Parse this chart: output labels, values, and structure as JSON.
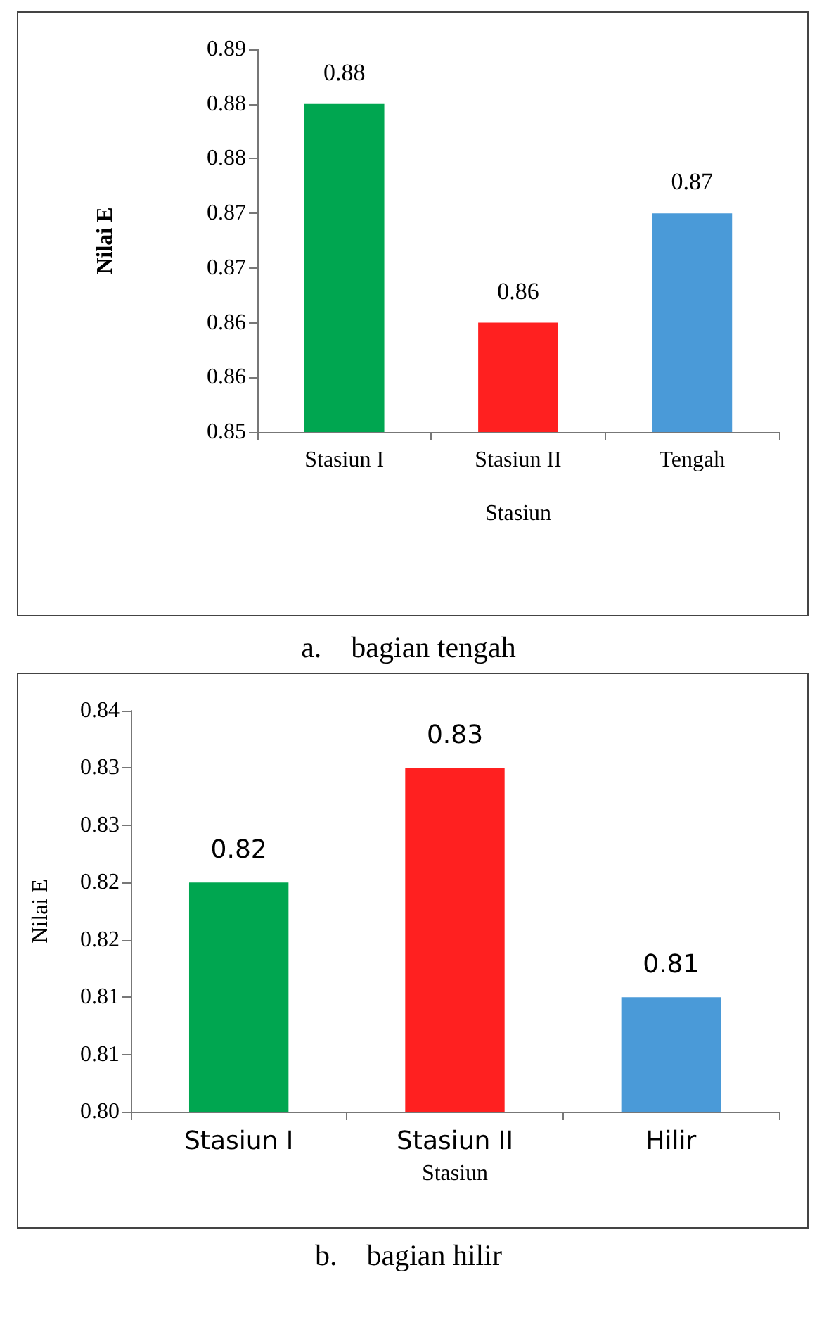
{
  "chart_data": [
    {
      "type": "bar",
      "title": "a.    bagian tengah",
      "xlabel": "Stasiun",
      "ylabel": "Nilai E",
      "categories": [
        "Stasiun I",
        "Stasiun II",
        "Tengah"
      ],
      "values": [
        0.88,
        0.86,
        0.87
      ],
      "colors": [
        "#00a650",
        "#ff2020",
        "#4a9ad8"
      ],
      "ylim": [
        0.85,
        0.885
      ],
      "yticks": [
        0.85,
        {
          "value": 0.855,
          "label": "0.86"
        },
        0.86,
        {
          "value": 0.865,
          "label": "0.87"
        },
        0.87,
        {
          "value": 0.875,
          "label": "0.88"
        },
        0.88,
        {
          "value": 0.885,
          "label": "0.89"
        }
      ],
      "data_labels": true,
      "grid": false
    },
    {
      "type": "bar",
      "title": "b.    bagian hilir",
      "xlabel": "Stasiun",
      "ylabel": "Nilai E",
      "categories": [
        "Stasiun I",
        "Stasiun II",
        "Hilir"
      ],
      "values": [
        0.82,
        0.83,
        0.81
      ],
      "colors": [
        "#00a650",
        "#ff2020",
        "#4a9ad8"
      ],
      "ylim": [
        0.8,
        0.835
      ],
      "yticks": [
        {
          "value": 0.8,
          "label": "0.80"
        },
        {
          "value": 0.805,
          "label": "0.81"
        },
        0.81,
        {
          "value": 0.815,
          "label": "0.82"
        },
        0.82,
        {
          "value": 0.825,
          "label": "0.83"
        },
        0.83,
        {
          "value": 0.835,
          "label": "0.84"
        }
      ],
      "data_labels": true,
      "grid": false
    }
  ]
}
